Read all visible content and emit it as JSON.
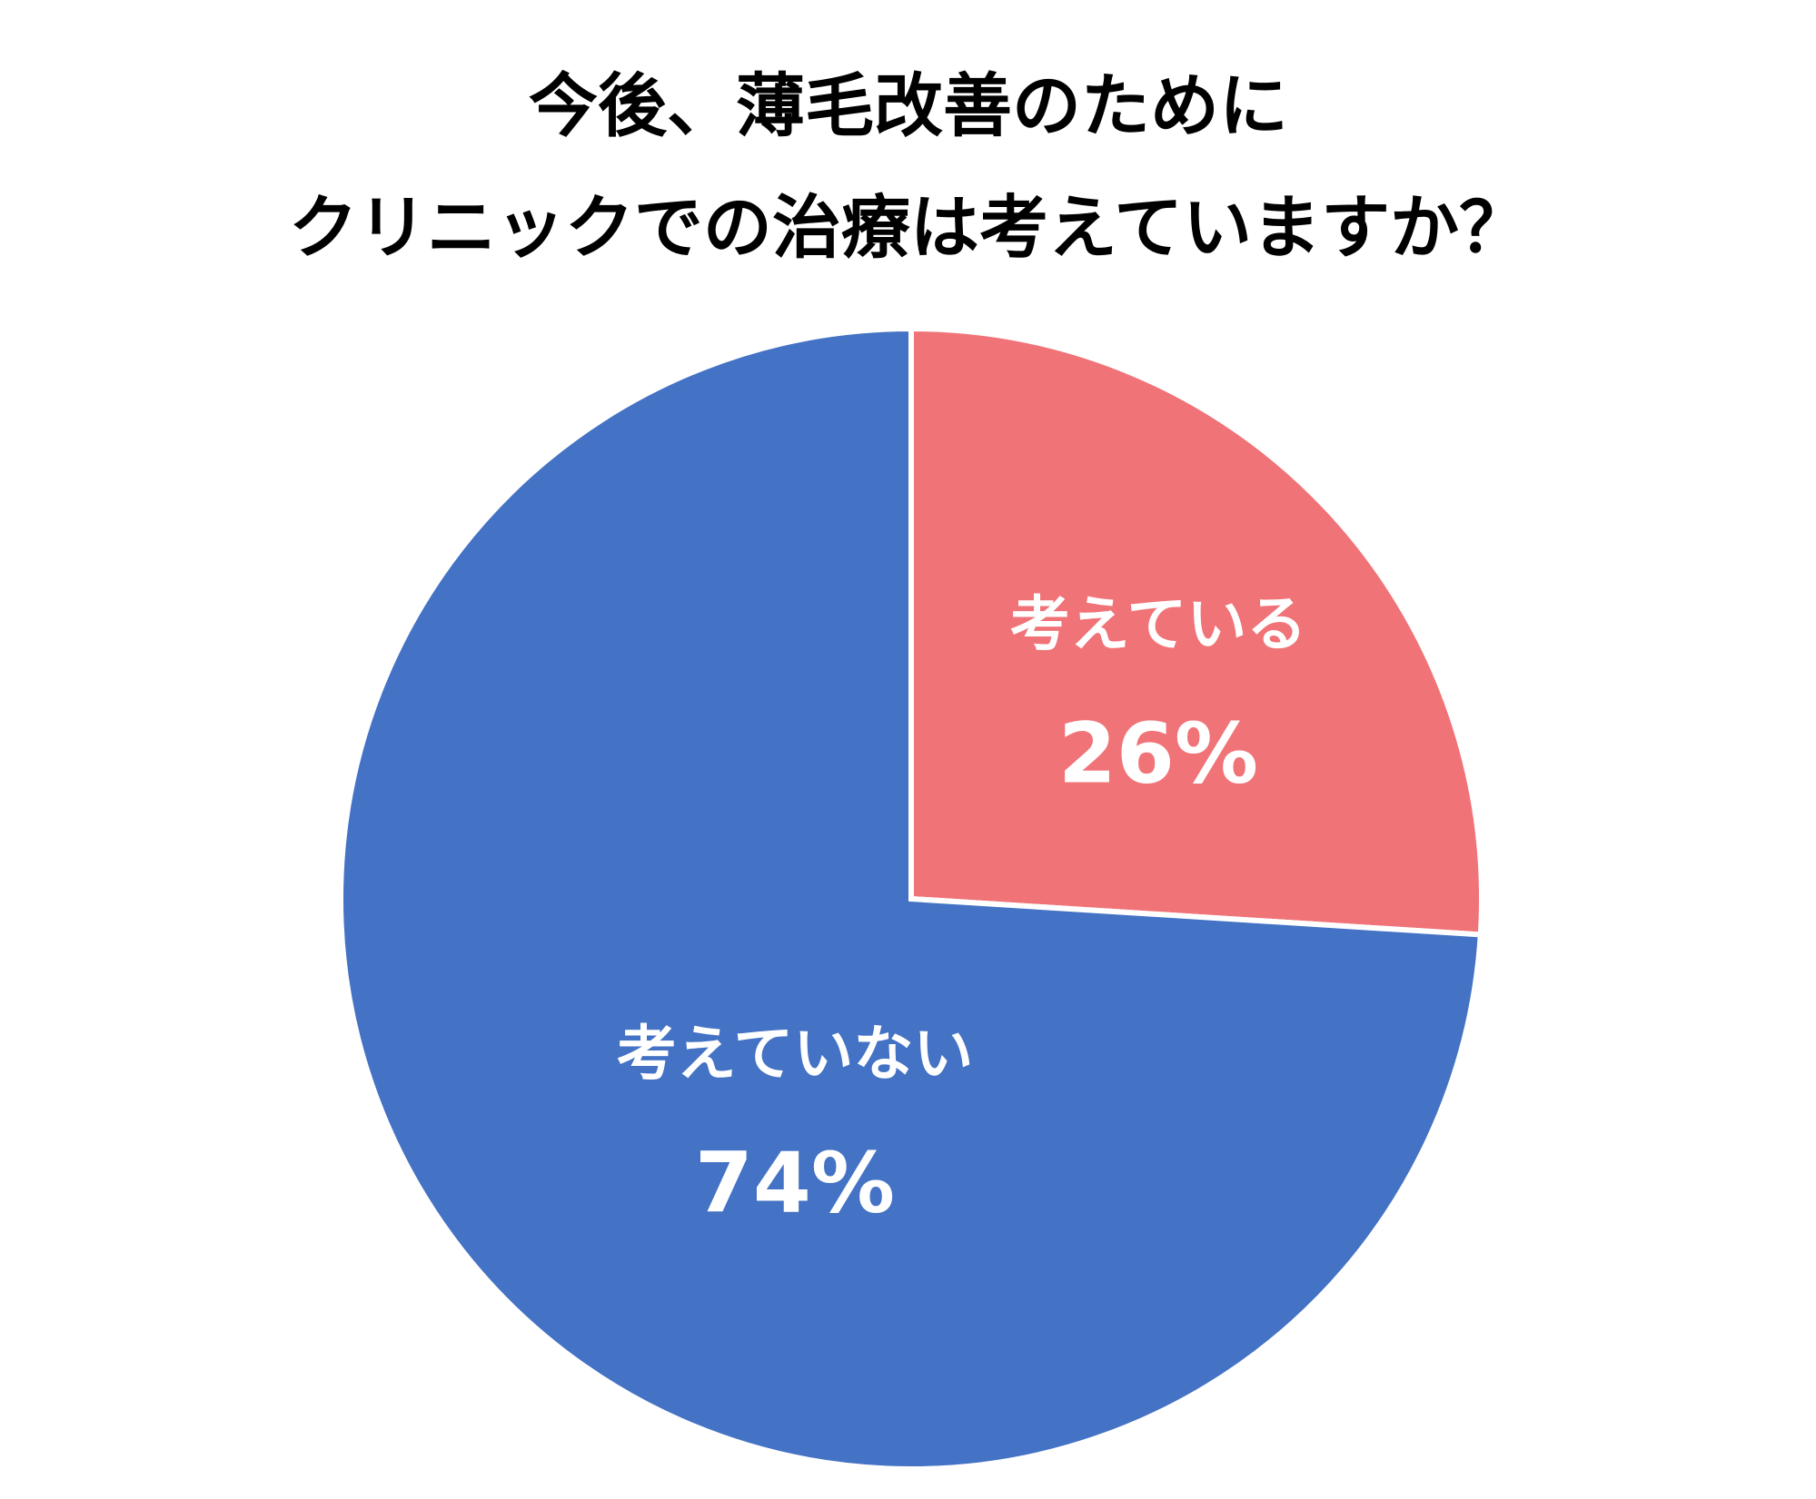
{
  "chart_data": {
    "type": "pie",
    "title": [
      "今後、薄毛改善のために",
      "クリニックでの治療は考えていますか？"
    ],
    "categories": [
      "考えている",
      "考えていない"
    ],
    "values": [
      26,
      74
    ],
    "value_labels": [
      "26%",
      "74%"
    ],
    "colors": [
      "#f07378",
      "#4472c4"
    ]
  }
}
